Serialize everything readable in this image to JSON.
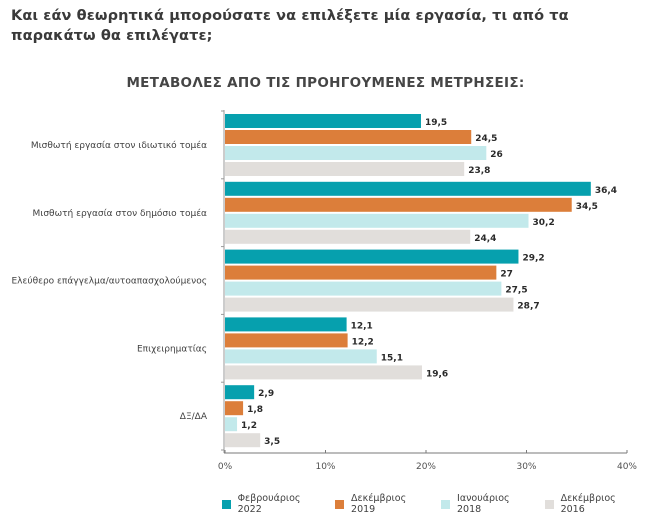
{
  "question": "Και εάν θεωρητικά μπορούσατε να επιλέξετε μία εργασία, τι από τα παρακάτω θα επιλέγατε;",
  "chart_data": {
    "type": "bar",
    "orientation": "horizontal",
    "title": "ΜΕΤΑΒΟΛΕΣ ΑΠΟ ΤΙΣ ΠΡΟΗΓΟΥΜΕΝΕΣ ΜΕΤΡΗΣΕΙΣ:",
    "categories": [
      "Μισθωτή εργασία στον ιδιωτικό τομέα",
      "Μισθωτή εργασία στον δημόσιο τομέα",
      "Ελεύθερο επάγγελμα/αυτοαπασχολούμενος",
      "Επιχειρηματίας",
      "ΔΞ/ΔΑ"
    ],
    "series": [
      {
        "name": "Φεβρουάριος 2022",
        "color": "#06a0ae",
        "values": [
          19.5,
          36.4,
          29.2,
          12.1,
          2.9
        ],
        "labels": [
          "19,5",
          "36,4",
          "29,2",
          "12,1",
          "2,9"
        ]
      },
      {
        "name": "Δεκέμβριος 2019",
        "color": "#dc7e3a",
        "values": [
          24.5,
          34.5,
          27,
          12.2,
          1.8
        ],
        "labels": [
          "24,5",
          "34,5",
          "27",
          "12,2",
          "1,8"
        ]
      },
      {
        "name": "Ιανουάριος 2018",
        "color": "#c2e9eb",
        "values": [
          26,
          30.2,
          27.5,
          15.1,
          1.2
        ],
        "labels": [
          "26",
          "30,2",
          "27,5",
          "15,1",
          "1,2"
        ]
      },
      {
        "name": "Δεκέμβριος 2016",
        "color": "#e1dedb",
        "values": [
          23.8,
          24.4,
          28.7,
          19.6,
          3.5
        ],
        "labels": [
          "23,8",
          "24,4",
          "28,7",
          "19,6",
          "3,5"
        ]
      }
    ],
    "xlim": [
      0,
      40
    ],
    "xticks": [
      0,
      10,
      20,
      30,
      40
    ],
    "xtick_labels": [
      "0%",
      "10%",
      "20%",
      "30%",
      "40%"
    ],
    "xlabel": "",
    "ylabel": "",
    "grid": false,
    "legend_position": "bottom"
  }
}
